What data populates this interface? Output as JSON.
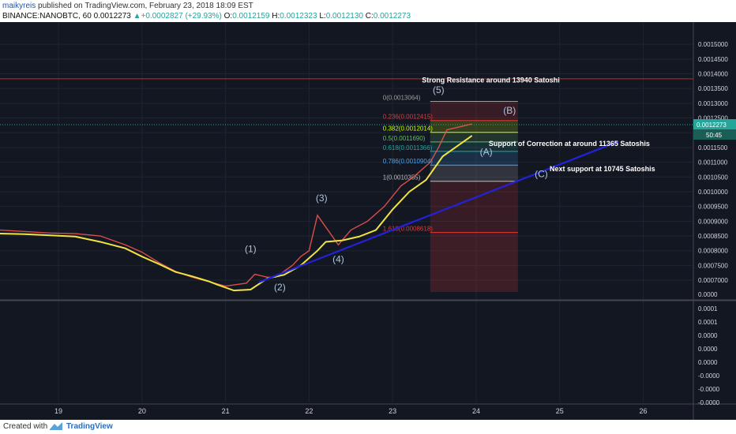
{
  "header": {
    "author": "maikyreis",
    "published": " published on TradingView.com, February 23, 2018 18:09 EST",
    "symbol": "BINANCE:NANOBTC, 60",
    "last": "0.0012273",
    "change": "+0.0002827 (+29.93%)",
    "o_label": "O:",
    "o": "0.0012159",
    "h_label": "H:",
    "h": "0.0012323",
    "l_label": "L:",
    "l": "0.0012130",
    "c_label": "C:",
    "c": "0.0012273"
  },
  "footer": {
    "created": "Created with",
    "brand": "TradingView"
  },
  "colors": {
    "background": "#131722",
    "yellow_ma": "#f0e442",
    "trendline": "#2222dd",
    "up": "#26a69a",
    "down": "#ef5350",
    "resistance": "#c62828",
    "current_price": "#26a69a"
  },
  "chart_data": {
    "type": "candlestick",
    "x_ticks": [
      "19",
      "20",
      "21",
      "22",
      "23",
      "24",
      "25",
      "26"
    ],
    "y_ticks": [
      "0.0015000",
      "0.0014500",
      "0.0014000",
      "0.0013500",
      "0.0013000",
      "0.0012500",
      "0.0012000",
      "0.0011500",
      "0.0011000",
      "0.0010500",
      "0.0010000",
      "0.0009500",
      "0.0009000",
      "0.0008500",
      "0.0008000",
      "0.0007500",
      "0.0007000"
    ],
    "y_range": [
      0.00066,
      0.00157
    ],
    "volume_axis_label": "0.0000",
    "last_price_label": "0.0012273",
    "countdown_label": "50:45",
    "price_path": [
      [
        18.3,
        0.00087
      ],
      [
        18.6,
        0.000865
      ],
      [
        18.9,
        0.00086
      ],
      [
        19.2,
        0.000858
      ],
      [
        19.5,
        0.00085
      ],
      [
        19.8,
        0.00082
      ],
      [
        20.0,
        0.000795
      ],
      [
        20.2,
        0.00076
      ],
      [
        20.4,
        0.00073
      ],
      [
        20.6,
        0.00071
      ],
      [
        20.8,
        0.000695
      ],
      [
        21.0,
        0.00068
      ],
      [
        21.25,
        0.00069
      ],
      [
        21.35,
        0.00072
      ],
      [
        21.5,
        0.00071
      ],
      [
        21.6,
        0.00071
      ],
      [
        21.8,
        0.00075
      ],
      [
        21.9,
        0.00078
      ],
      [
        22.0,
        0.0008
      ],
      [
        22.1,
        0.00092
      ],
      [
        22.2,
        0.00088
      ],
      [
        22.35,
        0.00082
      ],
      [
        22.5,
        0.00087
      ],
      [
        22.7,
        0.0009
      ],
      [
        22.9,
        0.00095
      ],
      [
        23.1,
        0.00102
      ],
      [
        23.25,
        0.00105
      ],
      [
        23.45,
        0.0011
      ],
      [
        23.55,
        0.00115
      ],
      [
        23.65,
        0.00121
      ],
      [
        23.8,
        0.00122
      ],
      [
        23.95,
        0.00123
      ]
    ],
    "ma_path": [
      [
        18.3,
        0.000858
      ],
      [
        18.6,
        0.000856
      ],
      [
        18.9,
        0.000852
      ],
      [
        19.2,
        0.000848
      ],
      [
        19.5,
        0.00083
      ],
      [
        19.8,
        0.000808
      ],
      [
        20.0,
        0.00078
      ],
      [
        20.2,
        0.000755
      ],
      [
        20.4,
        0.000728
      ],
      [
        20.6,
        0.000713
      ],
      [
        20.8,
        0.000696
      ],
      [
        20.9,
        0.000685
      ],
      [
        21.1,
        0.000665
      ],
      [
        21.3,
        0.000668
      ],
      [
        21.5,
        0.000706
      ],
      [
        21.7,
        0.000718
      ],
      [
        21.9,
        0.00075
      ],
      [
        22.1,
        0.0008
      ],
      [
        22.2,
        0.00083
      ],
      [
        22.4,
        0.000835
      ],
      [
        22.6,
        0.000848
      ],
      [
        22.8,
        0.00087
      ],
      [
        23.0,
        0.00094
      ],
      [
        23.2,
        0.001
      ],
      [
        23.4,
        0.00104
      ],
      [
        23.6,
        0.00112
      ],
      [
        23.8,
        0.00116
      ],
      [
        23.95,
        0.00119
      ]
    ],
    "trendline": [
      [
        21.4,
        0.000693
      ],
      [
        25.7,
        0.00117
      ]
    ],
    "resistance_line": 0.001383,
    "current_price_line": 0.0012273,
    "fib_levels": [
      {
        "label": "0(0.0013064)",
        "value": 0.0013064,
        "color": "#9e9e9e"
      },
      {
        "label": "0.236(0.0012415)",
        "value": 0.0012415,
        "color": "#e53935"
      },
      {
        "label": "0.382(0.0012014)",
        "value": 0.0012014,
        "color": "#c6ff00"
      },
      {
        "label": "0.5(0.0011690)",
        "value": 0.001169,
        "color": "#66bb6a"
      },
      {
        "label": "0.618(0.0011366)",
        "value": 0.0011366,
        "color": "#26a69a"
      },
      {
        "label": "0.786(0.0010904)",
        "value": 0.0010904,
        "color": "#42a5f5"
      },
      {
        "label": "1(0.0010355)",
        "value": 0.0010355,
        "color": "#bbbbbb"
      },
      {
        "label": "1.618(0.0008618)",
        "value": 0.0008618,
        "color": "#e53935"
      }
    ],
    "waves": [
      {
        "label": "(1)",
        "x": 21.3,
        "y": 0.000795
      },
      {
        "label": "(2)",
        "x": 21.65,
        "y": 0.000665
      },
      {
        "label": "(3)",
        "x": 22.15,
        "y": 0.000968
      },
      {
        "label": "(4)",
        "x": 22.35,
        "y": 0.00076
      },
      {
        "label": "(5)",
        "x": 23.55,
        "y": 0.001335
      },
      {
        "label": "(A)",
        "x": 24.12,
        "y": 0.001125
      },
      {
        "label": "(B)",
        "x": 24.4,
        "y": 0.001265
      },
      {
        "label": "(C)",
        "x": 24.78,
        "y": 0.00105
      }
    ],
    "annotations": [
      {
        "text": "Strong Resistance around 13940 Satoshi",
        "x": 23.35,
        "y": 0.00137
      },
      {
        "text": "Support of Correction at around 11365 Satoshis",
        "x": 24.15,
        "y": 0.001155
      },
      {
        "text": "Next support at 10745 Satoshis",
        "x": 24.88,
        "y": 0.00107
      }
    ],
    "indicator": {
      "ticks": [
        "0.0001",
        "0.0001",
        "0.0000",
        "0.0000",
        "0.0000",
        "-0.0000",
        "-0.0000",
        "-0.0000"
      ]
    }
  }
}
